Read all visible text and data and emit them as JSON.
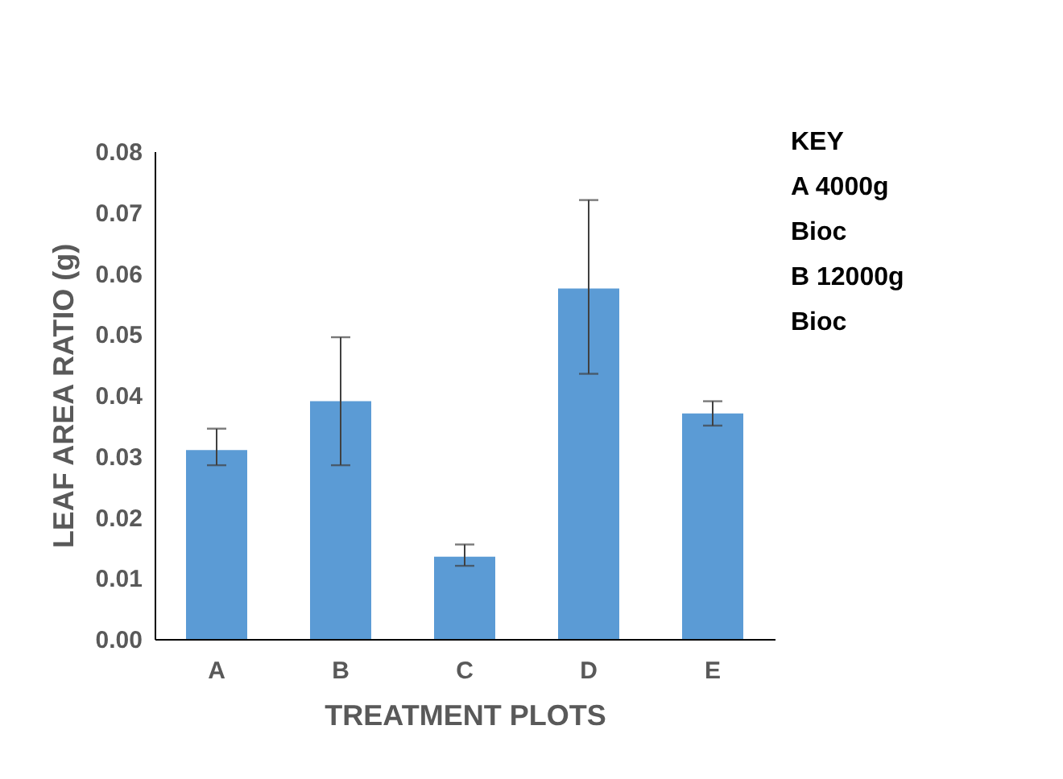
{
  "chart_data": {
    "type": "bar",
    "xlabel": "TREATMENT PLOTS",
    "ylabel": "LEAF AREA RATIO (g)",
    "categories": [
      "A",
      "B",
      "C",
      "D",
      "E"
    ],
    "values": [
      0.031,
      0.039,
      0.0135,
      0.0575,
      0.037
    ],
    "errors": [
      [
        0.0285,
        0.0345
      ],
      [
        0.0285,
        0.0495
      ],
      [
        0.012,
        0.0155
      ],
      [
        0.0435,
        0.072
      ],
      [
        0.035,
        0.039
      ]
    ],
    "color": "#5b9bd5",
    "ylim": [
      0,
      0.08
    ],
    "yticks": [
      {
        "value": 0,
        "label": "0.00"
      },
      0.01,
      0.02,
      0.03,
      0.04,
      0.05,
      0.06,
      0.07,
      0.08
    ],
    "grid": false,
    "annotations": [
      "KEY",
      "A 4000g",
      "Bioc",
      "B 12000g",
      "Bioc"
    ]
  }
}
